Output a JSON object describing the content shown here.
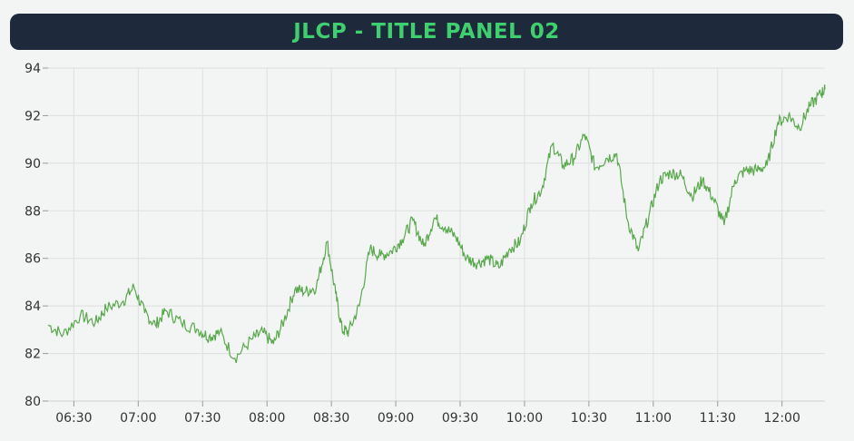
{
  "header": {
    "title": "JLCP - TITLE PANEL 02"
  },
  "colors": {
    "line": "#59a84c",
    "grid": "#dedede",
    "panel_bg": "#1e293b",
    "title": "#3ecf6e"
  },
  "chart_data": {
    "type": "line",
    "title": "JLCP - TITLE PANEL 02",
    "xlabel": "",
    "ylabel": "",
    "grid": true,
    "xlim": [
      "06:18",
      "12:20"
    ],
    "ylim": [
      80,
      94
    ],
    "x_ticks": [
      "06:30",
      "07:00",
      "07:30",
      "08:00",
      "08:30",
      "09:00",
      "09:30",
      "10:00",
      "10:30",
      "11:00",
      "11:30",
      "12:00"
    ],
    "y_ticks": [
      80,
      82,
      84,
      86,
      88,
      90,
      92,
      94
    ],
    "series": [
      {
        "x": [
          "06:18",
          "06:25",
          "06:33",
          "06:40",
          "06:45",
          "06:53",
          "06:58",
          "07:03",
          "07:08",
          "07:13",
          "07:20",
          "07:28",
          "07:33",
          "07:38",
          "07:45",
          "07:53",
          "07:58",
          "08:03",
          "08:08",
          "08:13",
          "08:18",
          "08:23",
          "08:28",
          "08:32",
          "08:35",
          "08:38",
          "08:43",
          "08:48",
          "08:53",
          "08:58",
          "09:03",
          "09:08",
          "09:13",
          "09:18",
          "09:23",
          "09:28",
          "09:33",
          "09:38",
          "09:43",
          "09:48",
          "09:53",
          "09:58",
          "10:03",
          "10:08",
          "10:13",
          "10:18",
          "10:23",
          "10:28",
          "10:33",
          "10:38",
          "10:43",
          "10:48",
          "10:53",
          "10:58",
          "11:03",
          "11:08",
          "11:13",
          "11:18",
          "11:23",
          "11:28",
          "11:33",
          "11:38",
          "11:43",
          "11:48",
          "11:53",
          "11:58",
          "12:03",
          "12:08",
          "12:13",
          "12:18",
          "12:20"
        ],
        "values": [
          83.2,
          82.8,
          83.6,
          83.3,
          83.9,
          84.2,
          84.8,
          83.7,
          83.2,
          83.8,
          83.3,
          83.0,
          82.7,
          82.9,
          81.8,
          82.6,
          82.9,
          82.4,
          83.4,
          84.7,
          84.6,
          84.8,
          86.7,
          84.5,
          83.0,
          82.9,
          84.0,
          86.4,
          86.1,
          86.3,
          86.8,
          87.6,
          86.5,
          87.7,
          87.3,
          86.9,
          86.0,
          85.8,
          86.0,
          85.6,
          86.4,
          86.7,
          88.3,
          88.9,
          90.8,
          89.9,
          90.2,
          91.2,
          89.8,
          90.2,
          90.4,
          87.6,
          86.3,
          87.8,
          89.3,
          89.6,
          89.5,
          88.6,
          89.3,
          88.5,
          87.4,
          89.3,
          89.7,
          89.7,
          89.9,
          91.7,
          92.0,
          91.5,
          92.4,
          92.9,
          93.1
        ]
      }
    ]
  }
}
